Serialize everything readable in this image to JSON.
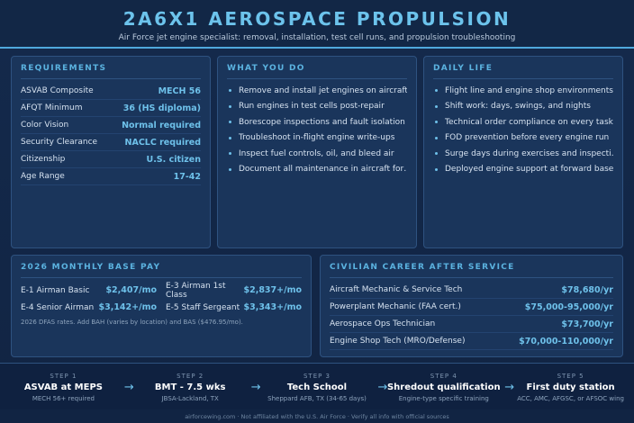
{
  "header": {
    "title": "2A6X1 AEROSPACE PROPULSION",
    "subtitle": "Air Force jet engine specialist: removal, installation, test cell runs, and propulsion troubleshooting"
  },
  "requirements": {
    "title": "REQUIREMENTS",
    "rows": [
      [
        "ASVAB Composite",
        "MECH 56"
      ],
      [
        "AFQT Minimum",
        "36 (HS diploma)"
      ],
      [
        "Color Vision",
        "Normal required"
      ],
      [
        "Security Clearance",
        "NACLC required"
      ],
      [
        "Citizenship",
        "U.S. citizen"
      ],
      [
        "Age Range",
        "17-42"
      ]
    ]
  },
  "what_you_do": {
    "title": "WHAT YOU DO",
    "items": [
      "Remove and install jet engines on aircraft",
      "Run engines in test cells post-repair",
      "Borescope inspections and fault isolation",
      "Troubleshoot in-flight engine write-ups",
      "Inspect fuel controls, oil, and bleed air",
      "Document all maintenance in aircraft for…"
    ]
  },
  "daily_life": {
    "title": "DAILY LIFE",
    "items": [
      "Flight line and engine shop environments",
      "Shift work: days, swings, and nights",
      "Technical order compliance on every task",
      "FOD prevention before every engine run",
      "Surge days during exercises and inspecti…",
      "Deployed engine support at forward bases"
    ]
  },
  "pay": {
    "title": "2026 MONTHLY BASE PAY",
    "rows": [
      [
        "E-1 Airman Basic",
        "$2,407/mo"
      ],
      [
        "E-3 Airman 1st Class",
        "$2,837+/mo"
      ],
      [
        "E-4 Senior Airman",
        "$3,142+/mo"
      ],
      [
        "E-5 Staff Sergeant",
        "$3,343+/mo"
      ]
    ],
    "note": "2026 DFAS rates. Add BAH (varies by location) and BAS ($476.95/mo)."
  },
  "civilian": {
    "title": "CIVILIAN CAREER AFTER SERVICE",
    "rows": [
      [
        "Aircraft Mechanic & Service Tech",
        "$78,680/yr"
      ],
      [
        "Powerplant Mechanic (FAA cert.)",
        "$75,000-95,000/yr"
      ],
      [
        "Aerospace Ops Technician",
        "$73,700/yr"
      ],
      [
        "Engine Shop Tech (MRO/Defense)",
        "$70,000-110,000/yr"
      ]
    ]
  },
  "steps": [
    {
      "step": "STEP 1",
      "title": "ASVAB at MEPS",
      "detail": "MECH 56+ required"
    },
    {
      "step": "STEP 2",
      "title": "BMT - 7.5 wks",
      "detail": "JBSA-Lackland, TX"
    },
    {
      "step": "STEP 3",
      "title": "Tech School",
      "detail": "Sheppard AFB, TX (34-65 days)"
    },
    {
      "step": "STEP 4",
      "title": "Shredout qualification",
      "detail": "Engine-type specific training"
    },
    {
      "step": "STEP 5",
      "title": "First duty station",
      "detail": "ACC, AMC, AFGSC, or AFSOC wing"
    }
  ],
  "footer": "airforcewing.com · Not affiliated with the U.S. Air Force · Verify all info with official sources"
}
